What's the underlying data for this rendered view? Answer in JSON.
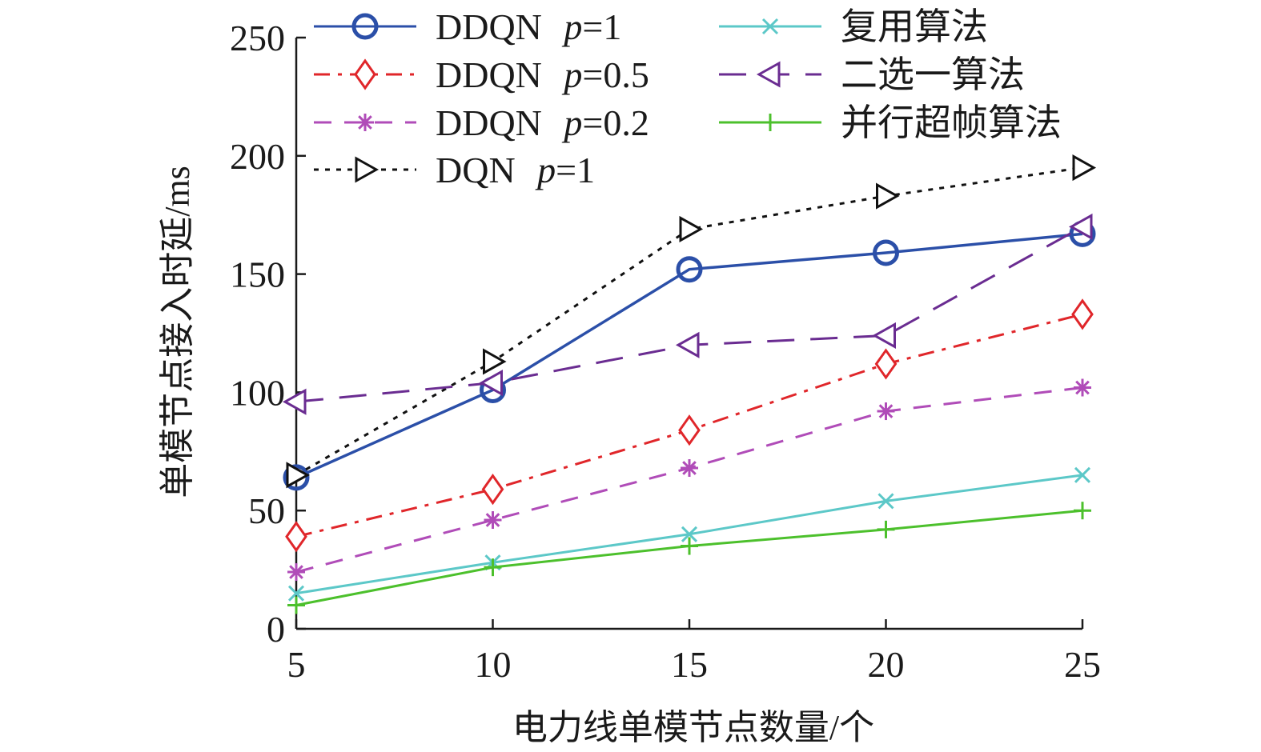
{
  "chart_data": {
    "type": "line",
    "title": "",
    "xlabel": "电力线单模节点数量/个",
    "ylabel": "单模节点接入时延/ms",
    "x": [
      5,
      10,
      15,
      20,
      25
    ],
    "xlim": [
      5,
      25
    ],
    "ylim": [
      0,
      250
    ],
    "xticks": [
      "5",
      "10",
      "15",
      "20",
      "25"
    ],
    "yticks": [
      "0",
      "50",
      "100",
      "150",
      "200",
      "250"
    ],
    "grid": false,
    "legend_position": "top-left",
    "series": [
      {
        "name": "DDQN p=1",
        "label_main": "DDQN ",
        "label_var": "p",
        "label_rest": "=1",
        "color": "#2b4fa8",
        "marker": "circle",
        "dash": "solid",
        "values": [
          64,
          101,
          152,
          159,
          167
        ]
      },
      {
        "name": "DDQN p=0.5",
        "label_main": "DDQN ",
        "label_var": "p",
        "label_rest": "=0.5",
        "color": "#e0262a",
        "marker": "diamond",
        "dash": "dashdot",
        "values": [
          39,
          59,
          84,
          112,
          133
        ]
      },
      {
        "name": "DDQN p=0.2",
        "label_main": "DDQN ",
        "label_var": "p",
        "label_rest": "=0.2",
        "color": "#b04cb8",
        "marker": "asterisk",
        "dash": "dashed",
        "values": [
          24,
          46,
          68,
          92,
          102
        ]
      },
      {
        "name": "DQN p=1",
        "label_main": "DQN ",
        "label_var": "p",
        "label_rest": "=1",
        "color": "#111111",
        "marker": "triangle-right",
        "dash": "dotted",
        "values": [
          65,
          113,
          169,
          183,
          195
        ]
      },
      {
        "name": "复用算法",
        "label_main": "复用算法",
        "label_var": "",
        "label_rest": "",
        "color": "#5cc8c8",
        "marker": "x",
        "dash": "solid",
        "values": [
          15,
          28,
          40,
          54,
          65
        ]
      },
      {
        "name": "二选一算法",
        "label_main": "二选一算法",
        "label_var": "",
        "label_rest": "",
        "color": "#6a2c91",
        "marker": "triangle-left",
        "dash": "longdash",
        "values": [
          96,
          104,
          120,
          124,
          170
        ]
      },
      {
        "name": "并行超帧算法",
        "label_main": "并行超帧算法",
        "label_var": "",
        "label_rest": "",
        "color": "#4cc02c",
        "marker": "plus",
        "dash": "solid",
        "values": [
          10,
          26,
          35,
          42,
          50
        ]
      }
    ]
  }
}
